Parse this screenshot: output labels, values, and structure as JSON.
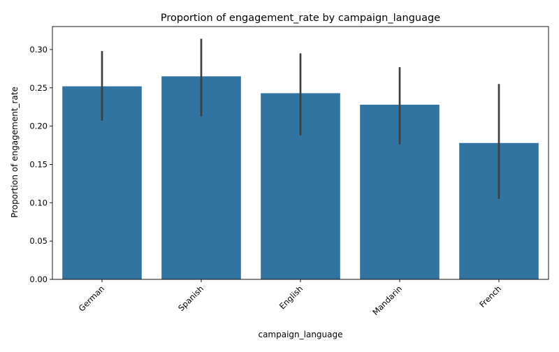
{
  "chart_data": {
    "type": "bar",
    "title": "Proportion of engagement_rate by campaign_language",
    "xlabel": "campaign_language",
    "ylabel": "Proportion of engagement_rate",
    "categories": [
      "German",
      "Spanish",
      "English",
      "Mandarin",
      "French"
    ],
    "values": [
      0.252,
      0.265,
      0.243,
      0.228,
      0.178
    ],
    "error_low": [
      0.207,
      0.213,
      0.188,
      0.176,
      0.105
    ],
    "error_high": [
      0.298,
      0.314,
      0.295,
      0.277,
      0.255
    ],
    "ylim": [
      0,
      0.33
    ],
    "yticks": [
      "0.00",
      "0.05",
      "0.10",
      "0.15",
      "0.20",
      "0.25",
      "0.30"
    ],
    "bar_color": "#3274a1",
    "errorbar_color": "#3f3f3f",
    "grid": false,
    "legend": "none"
  }
}
